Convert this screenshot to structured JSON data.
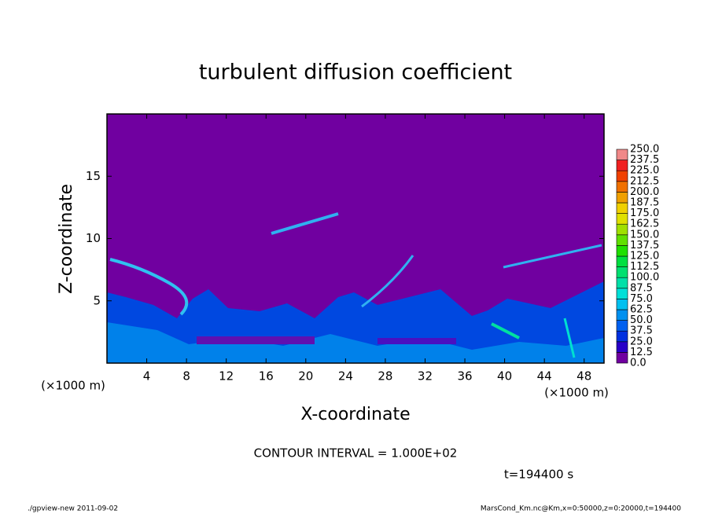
{
  "chart_data": {
    "type": "contour",
    "title": "turbulent diffusion coefficient",
    "x_label": "X-coordinate",
    "y_label": "Z-coordinate",
    "x_unit": "(×1000 m)",
    "y_unit": "(×1000 m)",
    "xlim": [
      0,
      50
    ],
    "ylim": [
      0,
      20
    ],
    "xticks": [
      4,
      8,
      12,
      16,
      20,
      24,
      28,
      32,
      36,
      40,
      44,
      48
    ],
    "yticks": [
      5,
      10,
      15
    ],
    "contour_note": "CONTOUR INTERVAL = 1.000E+02",
    "time_label": "t=194400 s",
    "footer_left": "./gpview-new   2011-09-02",
    "footer_right": "MarsCond_Km.nc@Km,x=0:50000,z=0:20000,t=194400",
    "colorbar": {
      "levels": [
        {
          "value": 0,
          "label": "0.0"
        },
        {
          "value": 12.5,
          "label": "12.5"
        },
        {
          "value": 25,
          "label": "25.0"
        },
        {
          "value": 37.5,
          "label": "37.5"
        },
        {
          "value": 50,
          "label": "50.0"
        },
        {
          "value": 62.5,
          "label": "62.5"
        },
        {
          "value": 75,
          "label": "75.0"
        },
        {
          "value": 87.5,
          "label": "87.5"
        },
        {
          "value": 100,
          "label": "100.0"
        },
        {
          "value": 112.5,
          "label": "112.5"
        },
        {
          "value": 125,
          "label": "125.0"
        },
        {
          "value": 137.5,
          "label": "137.5"
        },
        {
          "value": 150,
          "label": "150.0"
        },
        {
          "value": 162.5,
          "label": "162.5"
        },
        {
          "value": 175,
          "label": "175.0"
        },
        {
          "value": 187.5,
          "label": "187.5"
        },
        {
          "value": 200,
          "label": "200.0"
        },
        {
          "value": 212.5,
          "label": "212.5"
        },
        {
          "value": 225,
          "label": "225.0"
        },
        {
          "value": 237.5,
          "label": "237.5"
        },
        {
          "value": 250,
          "label": "250.0"
        }
      ],
      "colors": [
        "#7000a0",
        "#2800c8",
        "#0030e0",
        "#0060f0",
        "#0090f0",
        "#00c0f0",
        "#00e0d8",
        "#00e0a8",
        "#00e070",
        "#00e040",
        "#20e000",
        "#60e000",
        "#a0e000",
        "#e0e000",
        "#f0d000",
        "#f0a000",
        "#f07000",
        "#f04000",
        "#f02020",
        "#f08888"
      ]
    }
  }
}
